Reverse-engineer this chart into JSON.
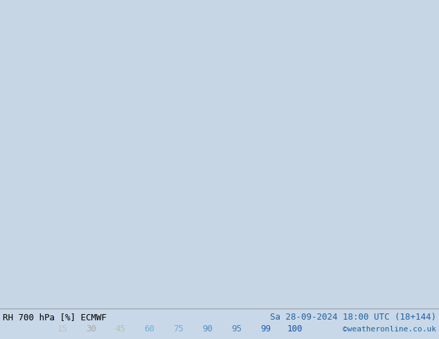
{
  "title_left": "RH 700 hPa [%] ECMWF",
  "title_right": "Sa 28-09-2024 18:00 UTC (18+144)",
  "credit": "©weatheronline.co.uk",
  "colorbar_values": [
    15,
    30,
    45,
    60,
    75,
    90,
    95,
    99,
    100
  ],
  "colorbar_colors": [
    "#c8c8c8",
    "#b0b0b0",
    "#c8d8a0",
    "#a8c878",
    "#78c850",
    "#50b8e8",
    "#2890d0",
    "#1060b8",
    "#0040a0"
  ],
  "bg_color": "#d0d8e8",
  "text_color_left": "#000000",
  "text_color_right": "#2060a0",
  "credit_color": "#2060a0",
  "map_bg": "#c8d8e8",
  "fig_width": 6.34,
  "fig_height": 4.9,
  "dpi": 100
}
